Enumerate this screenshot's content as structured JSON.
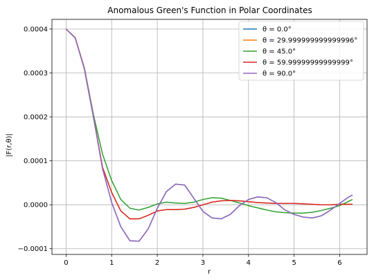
{
  "chart_data": {
    "type": "line",
    "title": "Anomalous Green's Function in Polar Coordinates",
    "xlabel": "r",
    "ylabel": "|F(r,θ)|",
    "xlim": [
      -0.31,
      6.6
    ],
    "ylim": [
      -0.000113,
      0.000422
    ],
    "xticks": [
      0,
      1,
      2,
      3,
      4,
      5,
      6
    ],
    "xtick_labels": [
      "0",
      "1",
      "2",
      "3",
      "4",
      "5",
      "6"
    ],
    "yticks": [
      -0.0001,
      0.0,
      0.0001,
      0.0002,
      0.0003,
      0.0004
    ],
    "ytick_labels": [
      "−0.0001",
      "0.0000",
      "0.0001",
      "0.0002",
      "0.0003",
      "0.0004"
    ],
    "grid": true,
    "legend_position": "top-right",
    "x": [
      0,
      0.2,
      0.4,
      0.6,
      0.8,
      1.0,
      1.2,
      1.4,
      1.6,
      1.8,
      2.0,
      2.2,
      2.4,
      2.6,
      2.8,
      3.0,
      3.2,
      3.4,
      3.6,
      3.8,
      4.0,
      4.2,
      4.4,
      4.6,
      4.8,
      5.0,
      5.2,
      5.4,
      5.6,
      5.8,
      6.0,
      6.2,
      6.28
    ],
    "series": [
      {
        "name": "θ = 0.0°",
        "color": "#1f77b4",
        "values": [
          0.0004,
          0.00038,
          0.00031,
          0.0002,
          8.2e-05,
          5e-06,
          -5e-05,
          -8.2e-05,
          -8.3e-05,
          -5.5e-05,
          -8e-06,
          3e-05,
          4.7e-05,
          4.5e-05,
          1.5e-05,
          -1.5e-05,
          -3e-05,
          -3.2e-05,
          -2.2e-05,
          -2e-06,
          1.2e-05,
          1.8e-05,
          1.6e-05,
          5e-06,
          -1.2e-05,
          -2.2e-05,
          -2.8e-05,
          -3e-05,
          -2.5e-05,
          -1.2e-05,
          3e-06,
          1.8e-05,
          2.2e-05
        ]
      },
      {
        "name": "θ = 29.999999999999996°",
        "color": "#ff7f0e",
        "values": [
          0.0004,
          0.00038,
          0.00031,
          0.0002,
          8.5e-05,
          2.8e-05,
          -1.4e-05,
          -3.2e-05,
          -3.2e-05,
          -2.4e-05,
          -1.4e-05,
          -1.1e-05,
          -1.1e-05,
          -1e-05,
          -6e-06,
          0,
          6e-06,
          9e-06,
          1e-05,
          9e-06,
          7e-06,
          5e-06,
          4e-06,
          3e-06,
          3e-06,
          3e-06,
          2e-06,
          1e-06,
          0,
          0,
          1e-06,
          1e-06,
          1e-06
        ]
      },
      {
        "name": "θ = 45.0°",
        "color": "#2ca02c",
        "values": [
          0.0004,
          0.00038,
          0.000312,
          0.000205,
          0.000115,
          5.5e-05,
          1.2e-05,
          -8e-06,
          -1.2e-05,
          -6e-06,
          2e-06,
          6e-06,
          4e-06,
          3e-06,
          6e-06,
          1.2e-05,
          1.6e-05,
          1.5e-05,
          1e-05,
          4e-06,
          -2e-06,
          -7e-06,
          -1.2e-05,
          -1.6e-05,
          -1.8e-05,
          -1.9e-05,
          -1.9e-05,
          -1.7e-05,
          -1.3e-05,
          -8e-06,
          -2e-06,
          8e-06,
          1.2e-05
        ]
      },
      {
        "name": "θ = 59.99999999999999°",
        "color": "#d62728",
        "values": [
          0.0004,
          0.00038,
          0.00031,
          0.0002,
          8.5e-05,
          2.8e-05,
          -1.4e-05,
          -3.2e-05,
          -3.2e-05,
          -2.4e-05,
          -1.4e-05,
          -1.1e-05,
          -1.1e-05,
          -1e-05,
          -6e-06,
          0,
          6e-06,
          9e-06,
          1e-05,
          9e-06,
          7e-06,
          5e-06,
          4e-06,
          3e-06,
          3e-06,
          3e-06,
          2e-06,
          1e-06,
          0,
          0,
          1e-06,
          1e-06,
          1e-06
        ]
      },
      {
        "name": "θ = 90.0°",
        "color": "#9467bd",
        "values": [
          0.0004,
          0.00038,
          0.00031,
          0.0002,
          8.2e-05,
          5e-06,
          -5e-05,
          -8.2e-05,
          -8.3e-05,
          -5.5e-05,
          -8e-06,
          3e-05,
          4.7e-05,
          4.5e-05,
          1.5e-05,
          -1.5e-05,
          -3e-05,
          -3.2e-05,
          -2.2e-05,
          -2e-06,
          1.2e-05,
          1.8e-05,
          1.6e-05,
          5e-06,
          -1.2e-05,
          -2.2e-05,
          -2.8e-05,
          -3e-05,
          -2.5e-05,
          -1.2e-05,
          3e-06,
          1.8e-05,
          2.2e-05
        ]
      }
    ]
  }
}
